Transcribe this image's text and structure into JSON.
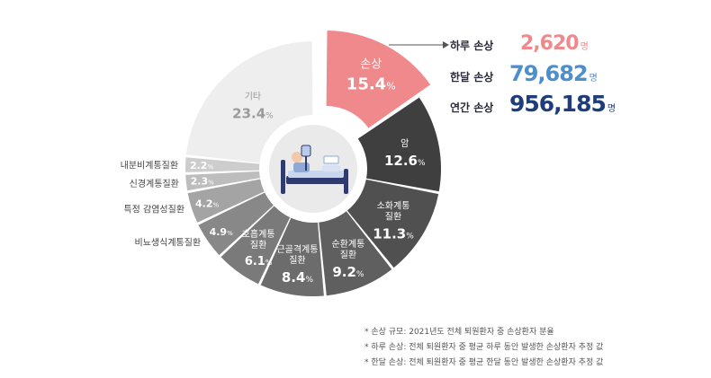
{
  "chart_data": {
    "type": "pie",
    "unit": "%",
    "slices": [
      {
        "label": "손상",
        "value": 15.4,
        "color": "#f0898b",
        "text_color": "#ffffff",
        "highlight": true
      },
      {
        "label": "암",
        "value": 12.6,
        "color": "#3f3f3f",
        "text_color": "#ffffff"
      },
      {
        "label": "소화계통\n질환",
        "value": 11.3,
        "color": "#505050",
        "text_color": "#ffffff"
      },
      {
        "label": "순환계통\n질환",
        "value": 9.2,
        "color": "#5f5f5f",
        "text_color": "#ffffff"
      },
      {
        "label": "근골격계통\n질환",
        "value": 8.4,
        "color": "#6c6c6c",
        "text_color": "#ffffff"
      },
      {
        "label": "호흡계통\n질환",
        "value": 6.1,
        "color": "#7a7a7a",
        "text_color": "#ffffff"
      },
      {
        "label": "비뇨생식계통질환",
        "value": 4.9,
        "color": "#888888",
        "text_color": "#ffffff",
        "outside": true
      },
      {
        "label": "특정 감염성질환",
        "value": 4.2,
        "color": "#a4a4a4",
        "text_color": "#ffffff",
        "outside": true
      },
      {
        "label": "신경계통질환",
        "value": 2.3,
        "color": "#bdbdbd",
        "text_color": "#ffffff",
        "outside": true
      },
      {
        "label": "내분비계통질환",
        "value": 2.2,
        "color": "#cdcdcd",
        "text_color": "#ffffff",
        "outside": true
      },
      {
        "label": "기타",
        "value": 23.4,
        "color": "#eeeeee",
        "text_color": "#9a9a9a"
      }
    ]
  },
  "stats": [
    {
      "label": "하루 손상",
      "value": "2,620",
      "unit": "명",
      "color": "#f0898b"
    },
    {
      "label": "한달 손상",
      "value": "79,682",
      "unit": "명",
      "color": "#4d8fcc"
    },
    {
      "label": "연간 손상",
      "value": "956,185",
      "unit": "명",
      "color": "#1f3d7a"
    }
  ],
  "notes": [
    "* 손상 규모: 2021년도 전체 퇴원환자 중 손상환자 분율",
    "* 하루 손상: 전체 퇴원환자 중 평균 하루 동안 발생한 손상환자 추정 값",
    "* 한달 손상: 전체 퇴원환자 중 평균 한달 동안 발생한 손상환자 추정 값"
  ]
}
